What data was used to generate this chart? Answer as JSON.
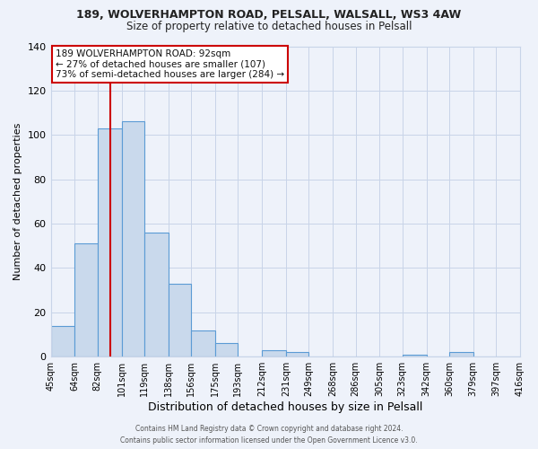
{
  "title": "189, WOLVERHAMPTON ROAD, PELSALL, WALSALL, WS3 4AW",
  "subtitle": "Size of property relative to detached houses in Pelsall",
  "xlabel": "Distribution of detached houses by size in Pelsall",
  "ylabel": "Number of detached properties",
  "bin_edges": [
    45,
    64,
    82,
    101,
    119,
    138,
    156,
    175,
    193,
    212,
    231,
    249,
    268,
    286,
    305,
    323,
    342,
    360,
    379,
    397,
    416
  ],
  "bin_labels": [
    "45sqm",
    "64sqm",
    "82sqm",
    "101sqm",
    "119sqm",
    "138sqm",
    "156sqm",
    "175sqm",
    "193sqm",
    "212sqm",
    "231sqm",
    "249sqm",
    "268sqm",
    "286sqm",
    "305sqm",
    "323sqm",
    "342sqm",
    "360sqm",
    "379sqm",
    "397sqm",
    "416sqm"
  ],
  "bar_heights": [
    14,
    51,
    103,
    106,
    56,
    33,
    12,
    6,
    0,
    3,
    2,
    0,
    0,
    0,
    0,
    1,
    0,
    2,
    0,
    0
  ],
  "bar_face_color": "#c9d9ec",
  "bar_edge_color": "#5b9bd5",
  "grid_color": "#c8d4e8",
  "background_color": "#eef2fa",
  "vline_x": 92,
  "vline_color": "#cc0000",
  "annotation_title": "189 WOLVERHAMPTON ROAD: 92sqm",
  "annotation_line1": "← 27% of detached houses are smaller (107)",
  "annotation_line2": "73% of semi-detached houses are larger (284) →",
  "annotation_box_color": "#cc0000",
  "ylim": [
    0,
    140
  ],
  "yticks": [
    0,
    20,
    40,
    60,
    80,
    100,
    120,
    140
  ],
  "footer_line1": "Contains HM Land Registry data © Crown copyright and database right 2024.",
  "footer_line2": "Contains public sector information licensed under the Open Government Licence v3.0."
}
